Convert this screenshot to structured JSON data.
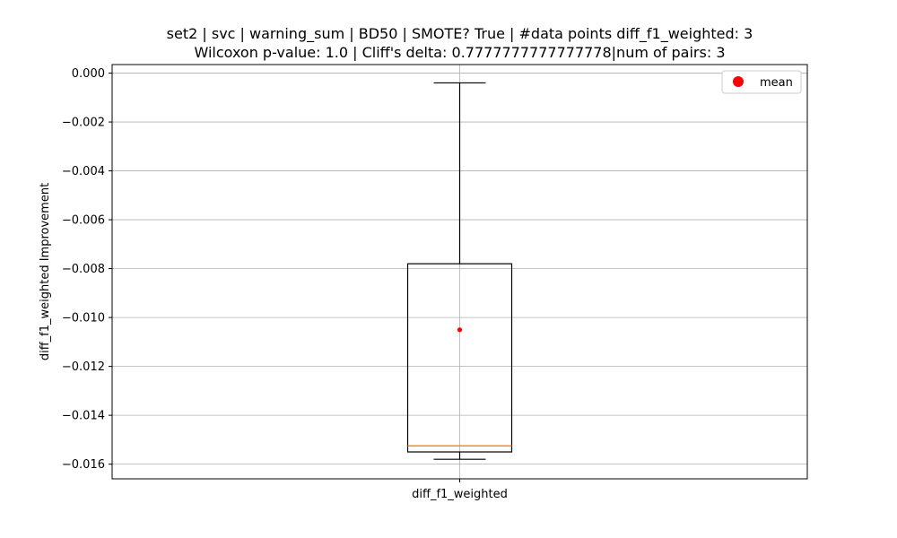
{
  "chart_data": {
    "type": "box",
    "title_line1": "set2 | svc | warning_sum | BD50 | SMOTE? True | #data points diff_f1_weighted: 3",
    "title_line2": "Wilcoxon p-value: 1.0 | Cliff's delta: 0.7777777777777778|num of pairs: 3",
    "xlabel": "",
    "ylabel": "diff_f1_weighted Improvement",
    "categories": [
      "diff_f1_weighted"
    ],
    "ylim": [
      -0.0166,
      0.00035
    ],
    "yticks": [
      0.0,
      -0.002,
      -0.004,
      -0.006,
      -0.008,
      -0.01,
      -0.012,
      -0.014,
      -0.016
    ],
    "ytick_labels": [
      "0.000",
      "−0.002",
      "−0.004",
      "−0.006",
      "−0.008",
      "−0.010",
      "−0.012",
      "−0.014",
      "−0.016"
    ],
    "grid": true,
    "legend": {
      "position": "top-right",
      "entries": [
        "mean"
      ]
    },
    "box": {
      "whisker_low": -0.0158,
      "q1": -0.0155,
      "median": -0.01525,
      "q3": -0.0078,
      "whisker_high": -0.0004,
      "mean": -0.0105
    },
    "colors": {
      "median": "#ff7f0e",
      "mean": "#ff0000",
      "grid": "#b0b0b0",
      "box": "#000000"
    }
  }
}
